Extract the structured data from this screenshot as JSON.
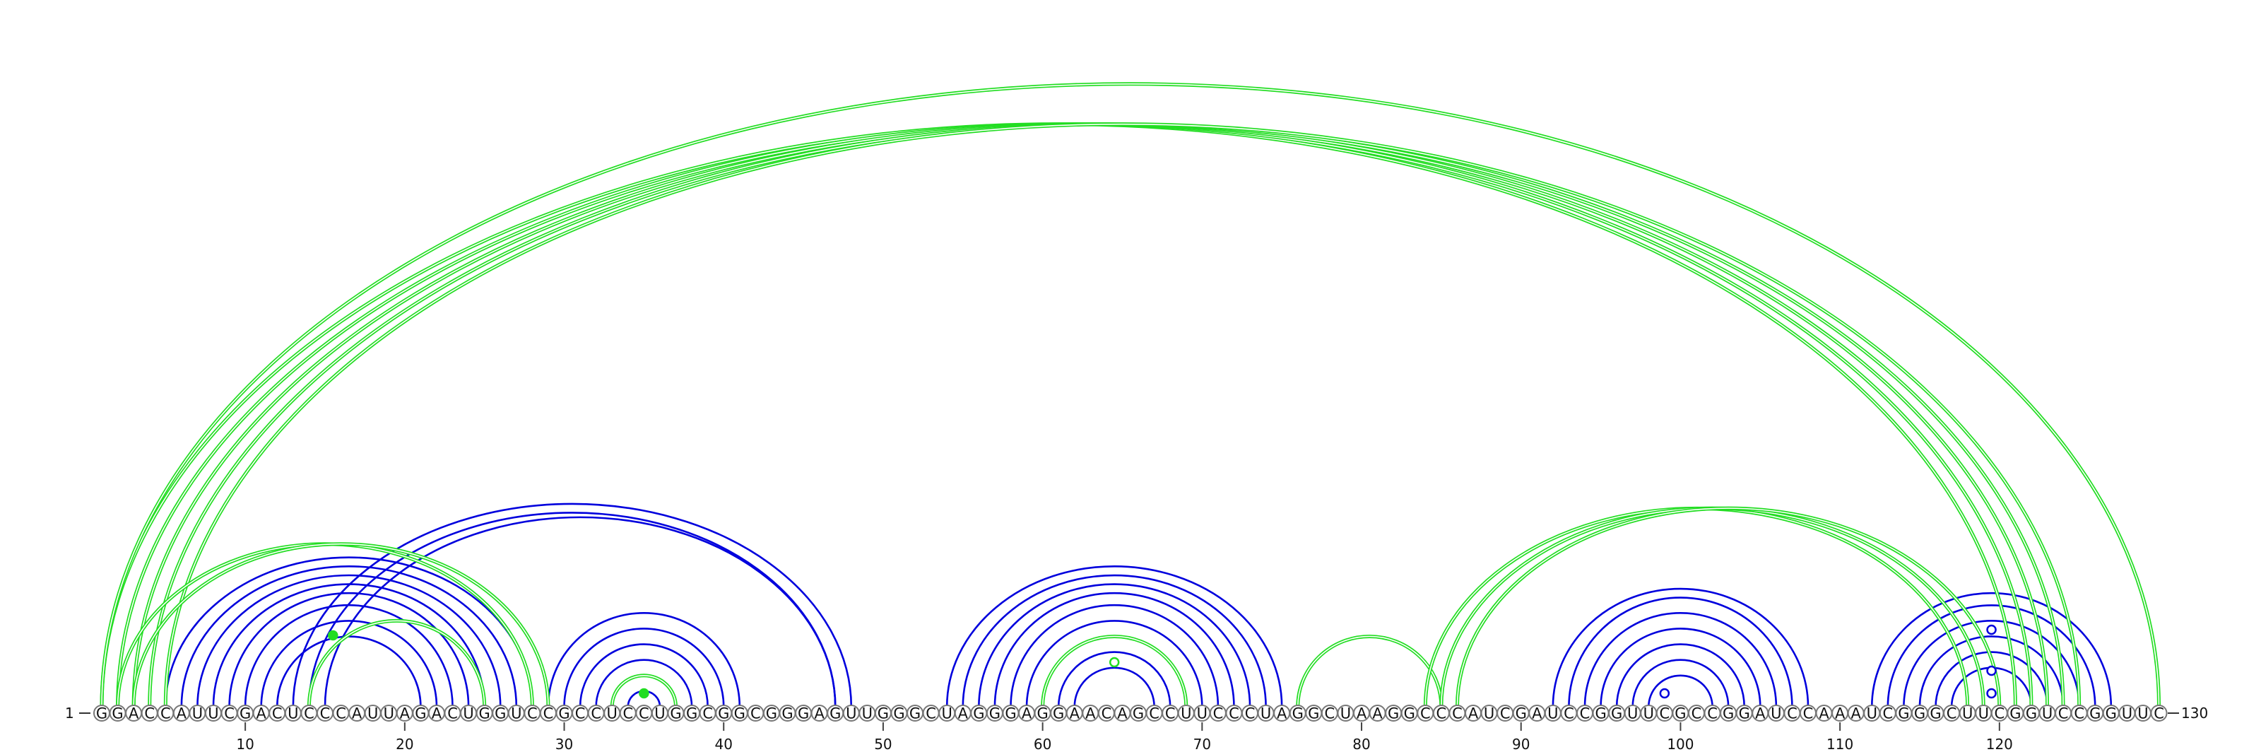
{
  "sequence": "GGACCAUUCGACUCCCAUUAGACUGGUCCGCCUCCUGGCGGCGGGAGUUGGGCUAGGGAGGAACAGCCUUCCCUAGGCUAAGGCCCAUCGAUCCGGUUCGCCGGAUCCAAAUCGGGCUUCGGUCCGGUUC",
  "length_label": "130",
  "start_label": "1",
  "ticks": [
    10,
    20,
    30,
    40,
    50,
    60,
    70,
    80,
    90,
    100,
    110,
    120
  ],
  "colors": {
    "blue": "#0000dd",
    "green": "#22dd22"
  },
  "arcs": {
    "blue": [
      [
        5,
        28
      ],
      [
        6,
        27
      ],
      [
        7,
        26
      ],
      [
        8,
        25
      ],
      [
        9,
        24
      ],
      [
        10,
        23
      ],
      [
        11,
        22
      ],
      [
        12,
        21
      ],
      [
        13,
        48
      ],
      [
        14,
        47
      ],
      [
        15,
        47
      ],
      [
        29,
        41
      ],
      [
        30,
        40
      ],
      [
        31,
        39
      ],
      [
        32,
        38
      ],
      [
        33,
        37
      ],
      [
        34,
        36
      ],
      [
        54,
        75
      ],
      [
        55,
        74
      ],
      [
        56,
        73
      ],
      [
        57,
        72
      ],
      [
        58,
        71
      ],
      [
        59,
        70
      ],
      [
        60,
        69
      ],
      [
        61,
        68
      ],
      [
        62,
        67
      ],
      [
        92,
        108
      ],
      [
        93,
        107
      ],
      [
        94,
        106
      ],
      [
        95,
        105
      ],
      [
        96,
        104
      ],
      [
        97,
        103
      ],
      [
        98,
        102
      ],
      [
        112,
        127
      ],
      [
        113,
        126
      ],
      [
        114,
        125
      ],
      [
        115,
        124
      ],
      [
        116,
        123
      ],
      [
        117,
        122
      ]
    ],
    "green": [
      [
        1,
        121
      ],
      [
        2,
        122
      ],
      [
        3,
        123
      ],
      [
        4,
        124
      ],
      [
        5,
        125
      ],
      [
        1,
        130
      ],
      [
        2,
        28
      ],
      [
        3,
        29
      ],
      [
        14,
        25
      ],
      [
        60,
        69
      ],
      [
        33,
        37
      ],
      [
        76,
        85
      ],
      [
        84,
        118
      ],
      [
        85,
        119
      ],
      [
        86,
        120
      ]
    ]
  },
  "markers": [
    {
      "pos": 15.5,
      "height": 110,
      "color": "green",
      "filled": true
    },
    {
      "pos": 35,
      "height": 28,
      "color": "green",
      "filled": true
    },
    {
      "pos": 64.5,
      "height": 72,
      "color": "green",
      "filled": false
    },
    {
      "pos": 99,
      "height": 28,
      "color": "blue",
      "filled": false
    },
    {
      "pos": 119.5,
      "height": 118,
      "color": "blue",
      "filled": false
    },
    {
      "pos": 119.5,
      "height": 60,
      "color": "blue",
      "filled": false
    },
    {
      "pos": 119.5,
      "height": 28,
      "color": "blue",
      "filled": false
    }
  ]
}
